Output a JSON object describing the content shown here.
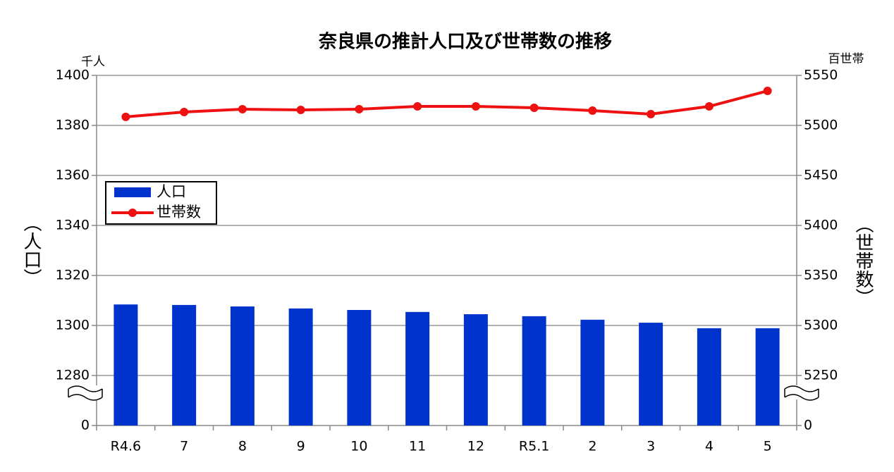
{
  "chart_data": {
    "type": "bar-line",
    "title": "奈良県の推計人口及び世帯数の推移",
    "y_label": "（人口）",
    "y2_label": "（世帯数）",
    "y_unit": "千人",
    "y2_unit": "百世帯",
    "categories": [
      "R4.6",
      "7",
      "8",
      "9",
      "10",
      "11",
      "12",
      "R5.1",
      "2",
      "3",
      "4",
      "5"
    ],
    "series": [
      {
        "name": "人口",
        "type": "bar",
        "color": "#0033cc",
        "values": [
          1308.4,
          1308.2,
          1307.6,
          1306.8,
          1306.2,
          1305.4,
          1304.5,
          1303.7,
          1302.3,
          1301.1,
          1298.9,
          1298.9
        ]
      },
      {
        "name": "世帯数",
        "type": "line",
        "axis": "y2",
        "color": "#ee1111",
        "values": [
          5508.5,
          5513.4,
          5516.2,
          5515.5,
          5516.2,
          5519,
          5519,
          5517.6,
          5514.8,
          5511.3,
          5519,
          5534.5
        ]
      }
    ],
    "ylim": [
      0,
      1400
    ],
    "yticks": [
      0,
      1280,
      1300,
      1320,
      1340,
      1360,
      1380,
      1400
    ],
    "y_break": [
      0,
      1280
    ],
    "y2lim": [
      0,
      5550
    ],
    "y2ticks": [
      0,
      5250,
      5300,
      5350,
      5400,
      5450,
      5500,
      5550
    ],
    "y2_break": [
      0,
      5250
    ],
    "grid": true,
    "legend": "upper left"
  }
}
